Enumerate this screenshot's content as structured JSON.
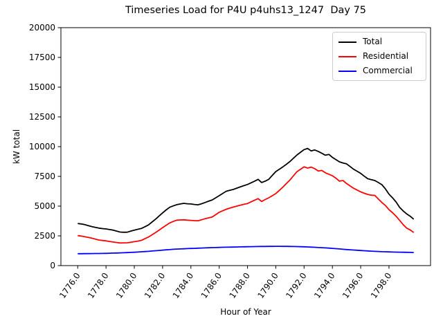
{
  "window": {
    "kind": "matplotlib-figure",
    "size": "640x480"
  },
  "chart_data": {
    "type": "line",
    "title": "Timeseries Load for P4U p4uhs13_1247  Day 75",
    "xlabel": "Hour of Year",
    "ylabel": "kW total",
    "xlim": [
      1774.8125,
      1800.9375
    ],
    "ylim": [
      0,
      20000
    ],
    "grid": false,
    "legend_position": "upper right",
    "x_tick_values": [
      1776,
      1778,
      1780,
      1782,
      1784,
      1786,
      1788,
      1790,
      1792,
      1794,
      1796,
      1798
    ],
    "x_tick_labels": [
      "1776.0",
      "1778.0",
      "1780.0",
      "1782.0",
      "1784.0",
      "1786.0",
      "1788.0",
      "1790.0",
      "1792.0",
      "1794.0",
      "1796.0",
      "1798.0"
    ],
    "y_tick_values": [
      0,
      2500,
      5000,
      7500,
      10000,
      12500,
      15000,
      17500,
      20000
    ],
    "y_tick_labels": [
      "0",
      "2500",
      "5000",
      "7500",
      "10000",
      "12500",
      "15000",
      "17500",
      "20000"
    ],
    "x": [
      1776.0,
      1776.25,
      1776.5,
      1776.75,
      1777.0,
      1777.25,
      1777.5,
      1777.75,
      1778.0,
      1778.25,
      1778.5,
      1778.75,
      1779.0,
      1779.25,
      1779.5,
      1779.75,
      1780.0,
      1780.25,
      1780.5,
      1780.75,
      1781.0,
      1781.25,
      1781.5,
      1781.75,
      1782.0,
      1782.25,
      1782.5,
      1782.75,
      1783.0,
      1783.25,
      1783.5,
      1783.75,
      1784.0,
      1784.25,
      1784.5,
      1784.75,
      1785.0,
      1785.25,
      1785.5,
      1785.75,
      1786.0,
      1786.25,
      1786.5,
      1786.75,
      1787.0,
      1787.25,
      1787.5,
      1787.75,
      1788.0,
      1788.25,
      1788.5,
      1788.75,
      1789.0,
      1789.25,
      1789.5,
      1789.75,
      1790.0,
      1790.25,
      1790.5,
      1790.75,
      1791.0,
      1791.25,
      1791.5,
      1791.75,
      1792.0,
      1792.25,
      1792.5,
      1792.75,
      1793.0,
      1793.25,
      1793.5,
      1793.75,
      1794.0,
      1794.25,
      1794.5,
      1794.75,
      1795.0,
      1795.25,
      1795.5,
      1795.75,
      1796.0,
      1796.25,
      1796.5,
      1796.75,
      1797.0,
      1797.25,
      1797.5,
      1797.75,
      1798.0,
      1798.25,
      1798.5,
      1798.75,
      1799.0,
      1799.25,
      1799.5,
      1799.75
    ],
    "series": [
      {
        "name": "Total",
        "color": "#000000",
        "values": [
          3540,
          3500,
          3450,
          3360,
          3280,
          3210,
          3150,
          3110,
          3080,
          3030,
          2980,
          2900,
          2820,
          2800,
          2810,
          2900,
          2980,
          3050,
          3120,
          3270,
          3420,
          3660,
          3900,
          4170,
          4430,
          4680,
          4900,
          5020,
          5120,
          5180,
          5230,
          5200,
          5180,
          5140,
          5110,
          5200,
          5300,
          5410,
          5520,
          5700,
          5880,
          6070,
          6250,
          6330,
          6400,
          6510,
          6620,
          6720,
          6820,
          6960,
          7100,
          7250,
          6980,
          7100,
          7250,
          7580,
          7900,
          8100,
          8300,
          8520,
          8750,
          9030,
          9300,
          9530,
          9750,
          9850,
          9640,
          9720,
          9600,
          9440,
          9280,
          9350,
          9100,
          8910,
          8720,
          8630,
          8550,
          8330,
          8100,
          7930,
          7750,
          7520,
          7300,
          7220,
          7150,
          6980,
          6800,
          6450,
          6000,
          5700,
          5350,
          4900,
          4600,
          4350,
          4150,
          3900
        ]
      },
      {
        "name": "Residential",
        "color": "#ff0000",
        "values": [
          2520,
          2480,
          2430,
          2370,
          2300,
          2220,
          2150,
          2110,
          2080,
          2030,
          1980,
          1940,
          1900,
          1910,
          1920,
          1960,
          2010,
          2060,
          2120,
          2260,
          2400,
          2590,
          2780,
          2980,
          3190,
          3390,
          3580,
          3710,
          3820,
          3840,
          3850,
          3820,
          3800,
          3780,
          3770,
          3850,
          3940,
          4010,
          4080,
          4280,
          4480,
          4610,
          4740,
          4830,
          4920,
          5000,
          5080,
          5150,
          5220,
          5360,
          5500,
          5630,
          5390,
          5550,
          5700,
          5870,
          6050,
          6320,
          6600,
          6900,
          7200,
          7550,
          7900,
          8100,
          8300,
          8200,
          8280,
          8150,
          7950,
          8000,
          7800,
          7680,
          7550,
          7350,
          7100,
          7150,
          6900,
          6700,
          6500,
          6350,
          6200,
          6080,
          5980,
          5920,
          5900,
          5600,
          5300,
          5050,
          4700,
          4450,
          4150,
          3800,
          3450,
          3150,
          3000,
          2780
        ]
      },
      {
        "name": "Commercial",
        "color": "#0000ff",
        "values": [
          1000,
          1000,
          1005,
          1005,
          1010,
          1015,
          1020,
          1025,
          1030,
          1040,
          1050,
          1060,
          1070,
          1080,
          1095,
          1110,
          1120,
          1140,
          1160,
          1180,
          1200,
          1225,
          1250,
          1275,
          1300,
          1325,
          1345,
          1370,
          1390,
          1400,
          1415,
          1430,
          1440,
          1450,
          1465,
          1475,
          1490,
          1500,
          1510,
          1520,
          1530,
          1540,
          1545,
          1550,
          1560,
          1565,
          1575,
          1580,
          1590,
          1595,
          1600,
          1605,
          1610,
          1610,
          1615,
          1615,
          1620,
          1620,
          1618,
          1615,
          1610,
          1605,
          1600,
          1590,
          1580,
          1570,
          1555,
          1540,
          1520,
          1505,
          1490,
          1470,
          1450,
          1425,
          1400,
          1375,
          1350,
          1330,
          1310,
          1290,
          1270,
          1250,
          1235,
          1215,
          1200,
          1185,
          1170,
          1160,
          1150,
          1140,
          1135,
          1125,
          1120,
          1115,
          1110,
          1100
        ]
      }
    ]
  }
}
